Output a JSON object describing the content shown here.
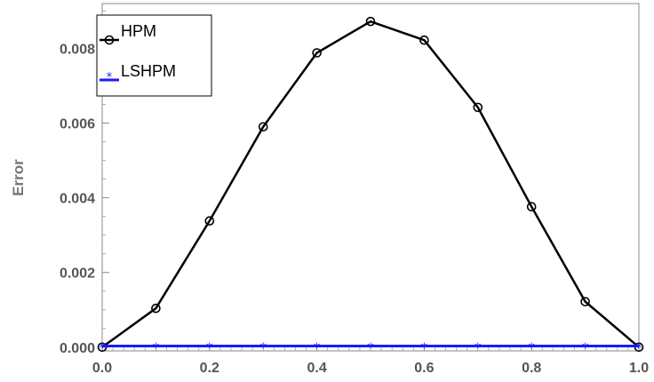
{
  "chart_data": {
    "type": "line",
    "title": "",
    "xlabel": "",
    "ylabel": "Error",
    "xlim": [
      0,
      1.0
    ],
    "ylim": [
      -0.0001,
      0.0092
    ],
    "xticks": [
      "0.0",
      "0.2",
      "0.4",
      "0.6",
      "0.8",
      "1.0"
    ],
    "yticks": [
      "0.000",
      "0.002",
      "0.004",
      "0.006",
      "0.008"
    ],
    "grid": false,
    "legend_position": "top-left",
    "x": [
      0.0,
      0.1,
      0.2,
      0.3,
      0.4,
      0.5,
      0.6,
      0.7,
      0.8,
      0.9,
      1.0
    ],
    "series": [
      {
        "name": "HPM",
        "color": "#000000",
        "marker": "circle",
        "values": [
          0.0,
          0.00104,
          0.00338,
          0.0059,
          0.00788,
          0.00872,
          0.00822,
          0.00642,
          0.00376,
          0.00122,
          0.0
        ]
      },
      {
        "name": "LSHPM",
        "color": "#1a1aff",
        "marker": "star",
        "values": [
          3e-05,
          3e-05,
          3e-05,
          3e-05,
          3e-05,
          3e-05,
          3e-05,
          3e-05,
          3e-05,
          3e-05,
          3e-05
        ]
      }
    ]
  }
}
